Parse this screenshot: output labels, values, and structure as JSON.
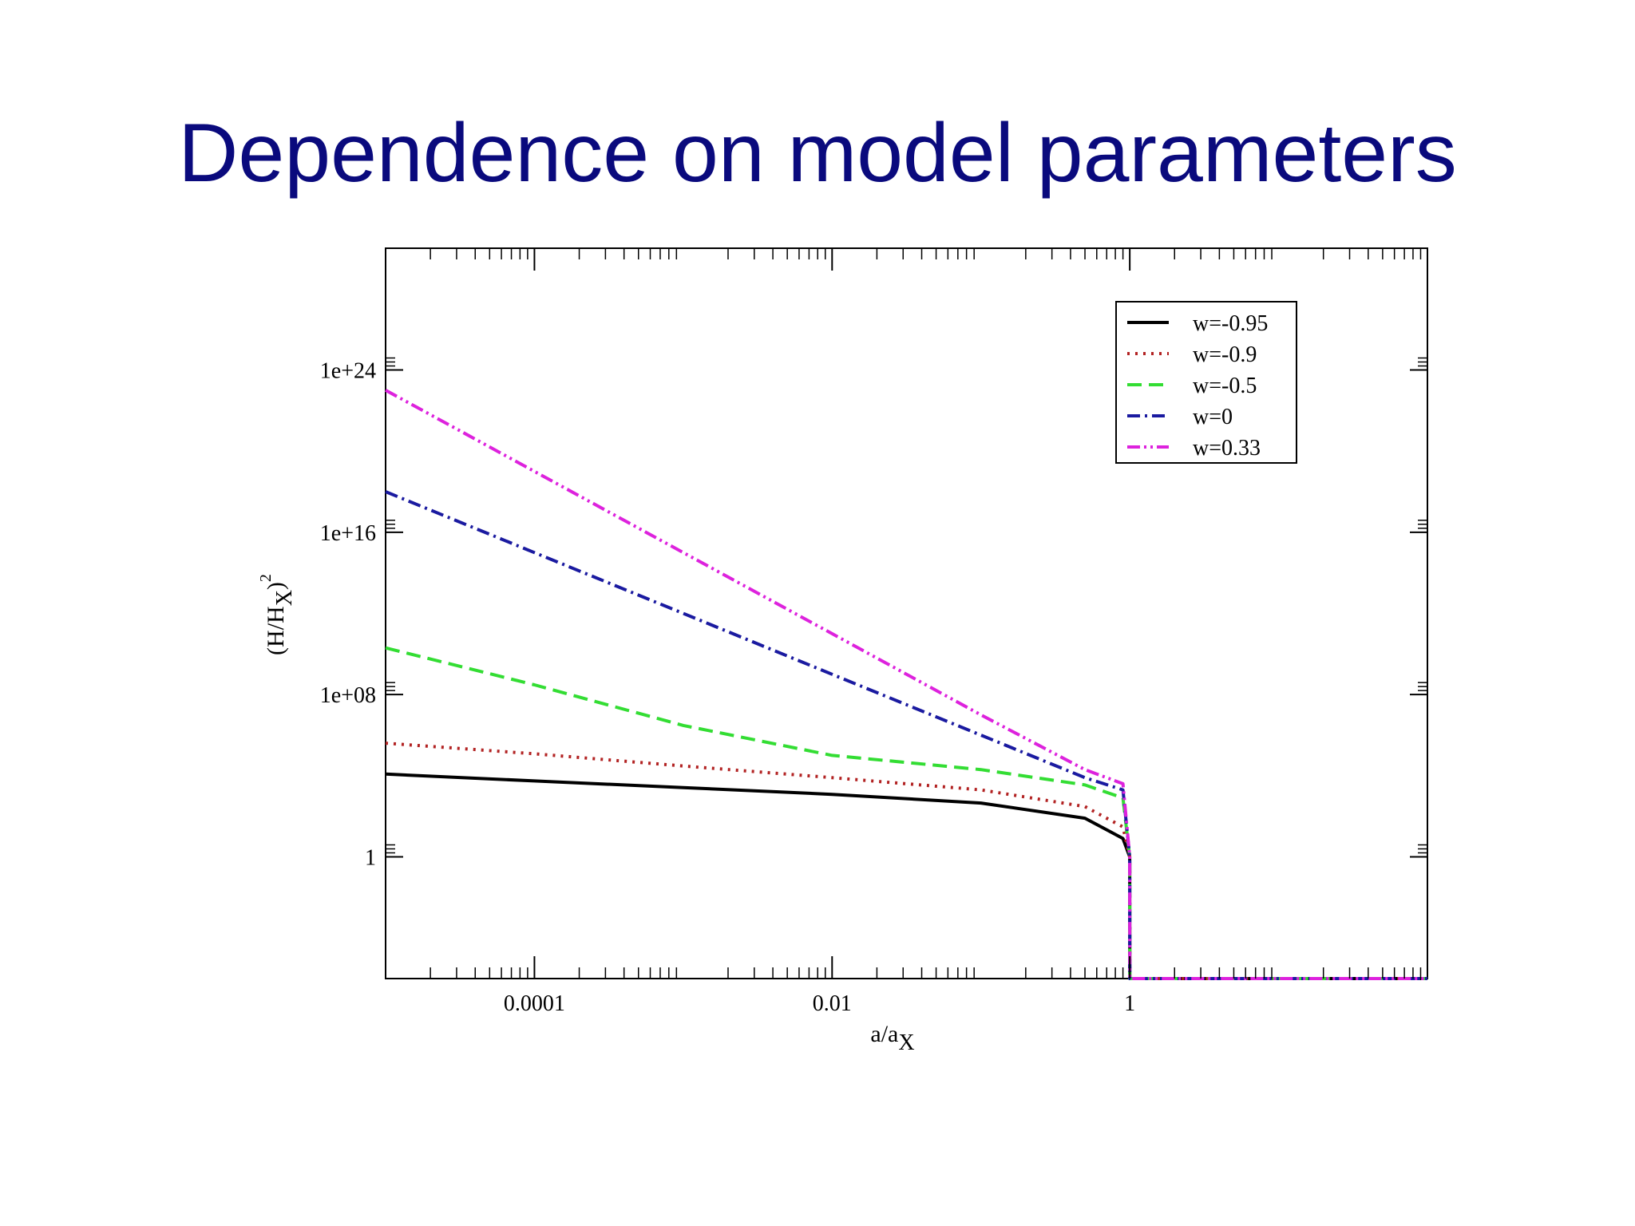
{
  "slide": {
    "title": "Dependence on model parameters"
  },
  "chart_data": {
    "type": "line",
    "title": "",
    "xlabel": "a/a",
    "xlabel_sub": "X",
    "ylabel": "(H/H",
    "ylabel_sub": "X",
    "ylabel_sup": "2",
    "x_scale": "log",
    "y_scale": "log",
    "xlim": [
      1e-05,
      100
    ],
    "ylim": [
      1e-06,
      1e+30
    ],
    "x_ticks": [
      {
        "value": 0.0001,
        "label": "0.0001"
      },
      {
        "value": 0.01,
        "label": "0.01"
      },
      {
        "value": 1,
        "label": "1"
      }
    ],
    "y_ticks": [
      {
        "value": 1,
        "label": "1"
      },
      {
        "value": 100000000.0,
        "label": "1e+08"
      },
      {
        "value": 1e+16,
        "label": "1e+16"
      },
      {
        "value": 1e+24,
        "label": "1e+24"
      }
    ],
    "grid": false,
    "legend_position": "top-right",
    "series": [
      {
        "name": "w=-0.95",
        "color": "#000000",
        "dash": "solid",
        "x": [
          1e-05,
          0.0001,
          0.001,
          0.01,
          0.1,
          0.5,
          0.9,
          1.0,
          1.0001,
          100
        ],
        "y": [
          12000,
          5500,
          2600,
          1200,
          450,
          80,
          8,
          1,
          1e-06,
          1e-06
        ]
      },
      {
        "name": "w=-0.9",
        "color": "#b22222",
        "dash": "dot",
        "x": [
          1e-05,
          0.0001,
          0.001,
          0.01,
          0.1,
          0.5,
          0.9,
          1.0,
          1.0001,
          100
        ],
        "y": [
          400000,
          120000,
          30000,
          8000,
          2000,
          300,
          30,
          1,
          1e-06,
          1e-06
        ]
      },
      {
        "name": "w=-0.5",
        "color": "#33dd33",
        "dash": "dash",
        "x": [
          1e-05,
          0.0001,
          0.001,
          0.01,
          0.1,
          0.5,
          0.9,
          1.0,
          1.0001,
          100
        ],
        "y": [
          20000000000.0,
          300000000.0,
          3000000.0,
          100000.0,
          20000.0,
          3500,
          800,
          1,
          1e-06,
          1e-06
        ]
      },
      {
        "name": "w=0",
        "color": "#1a1aa0",
        "dash": "dashdot",
        "x": [
          1e-05,
          0.0001,
          0.001,
          0.01,
          0.1,
          0.5,
          0.9,
          1.0,
          1.0001,
          100
        ],
        "y": [
          1e+18,
          1000000000000000.0,
          1000000000000.0,
          1000000000.0,
          1000000.0,
          8000,
          2000,
          1,
          1e-06,
          1e-06
        ]
      },
      {
        "name": "w=0.33",
        "color": "#dd22dd",
        "dash": "dashdotdot",
        "x": [
          1e-05,
          0.0001,
          0.001,
          0.01,
          0.1,
          0.5,
          0.9,
          1.0,
          1.0001,
          100
        ],
        "y": [
          1e+23,
          1e+19,
          1000000000000000.0,
          100000000000.0,
          10000000.0,
          20000,
          4000,
          1,
          1e-06,
          1e-06
        ]
      }
    ]
  }
}
